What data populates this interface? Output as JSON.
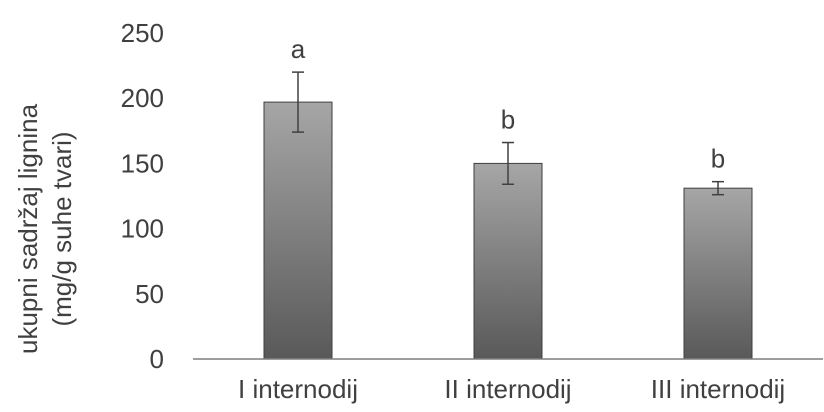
{
  "chart_data": {
    "type": "bar",
    "categories": [
      "I internodij",
      "II internodij",
      "III internodij"
    ],
    "values": [
      197,
      150,
      131
    ],
    "errors": [
      23,
      16,
      5
    ],
    "significance_labels": [
      "a",
      "b",
      "b"
    ],
    "ylabel_line1": "ukupni sadržaj lignina",
    "ylabel_line2": "(mg/g suhe tvari)",
    "xlabel": "",
    "title": "",
    "ylim": [
      0,
      250
    ],
    "yticks": [
      0,
      50,
      100,
      150,
      200,
      250
    ],
    "grid": false,
    "legend": "none",
    "colors": {
      "bar_top": "#a6a6a6",
      "bar_bottom": "#595959",
      "bar_stroke": "#3f3f3f",
      "axis": "#7f7f7f",
      "error_bar": "#404040",
      "text": "#404040"
    }
  }
}
